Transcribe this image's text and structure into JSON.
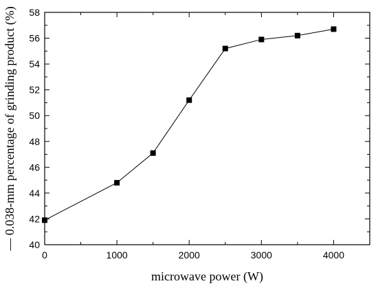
{
  "chart_data": {
    "type": "line",
    "title": "",
    "xlabel": "microwave power (W)",
    "ylabel": "— 0.038-mm percentage of grinding product (%)",
    "xlim": [
      0,
      4500
    ],
    "ylim": [
      40,
      58
    ],
    "xticks": [
      0,
      1000,
      2000,
      3000,
      4000
    ],
    "yticks": [
      40,
      42,
      44,
      46,
      48,
      50,
      52,
      54,
      56,
      58
    ],
    "grid": false,
    "legend": "none",
    "marker": "square",
    "color": "#000000",
    "x": [
      0,
      1000,
      1500,
      2000,
      2500,
      3000,
      3500,
      4000
    ],
    "y": [
      41.9,
      44.8,
      47.1,
      51.2,
      55.2,
      55.9,
      56.2,
      56.7
    ]
  }
}
